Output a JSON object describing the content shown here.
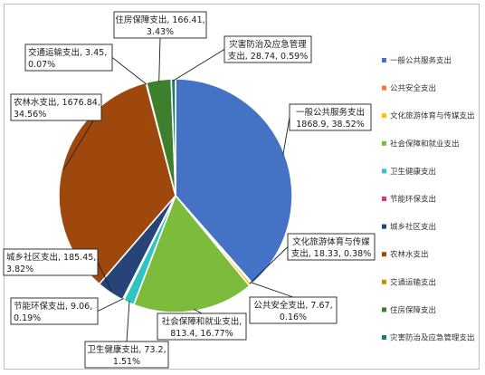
{
  "chart_data": {
    "type": "pie",
    "title": "",
    "legend_position": "right",
    "series": [
      {
        "name": "一般公共服务支出",
        "value": 1868.9,
        "percent": "38.52%",
        "label_line1": "一般公共服务支出",
        "label_line2": "1868.9, 38.52%",
        "color": "#4472c4"
      },
      {
        "name": "公共安全支出",
        "value": 7.67,
        "percent": "0.16%",
        "label_line1": "公共安全支出, 7.67,",
        "label_line2": "0.16%",
        "color": "#ed7d31"
      },
      {
        "name": "文化旅游体育与传媒支出",
        "value": 18.33,
        "percent": "0.38%",
        "label_line1": "文化旅游体育与传媒",
        "label_line2": "支出, 18.33, 0.38%",
        "color": "#ffc000"
      },
      {
        "name": "社会保障和就业支出",
        "value": 813.4,
        "percent": "16.77%",
        "label_line1": "社会保障和就业支出,",
        "label_line2": "813.4, 16.77%",
        "color": "#7cbb3c"
      },
      {
        "name": "卫生健康支出",
        "value": 73.2,
        "percent": "1.51%",
        "label_line1": "卫生健康支出, 73.2,",
        "label_line2": "1.51%",
        "color": "#2ec5c0"
      },
      {
        "name": "节能环保支出",
        "value": 9.06,
        "percent": "0.19%",
        "label_line1": "节能环保支出, 9.06,",
        "label_line2": "0.19%",
        "color": "#e0308a"
      },
      {
        "name": "城乡社区支出",
        "value": 185.45,
        "percent": "3.82%",
        "label_line1": "城乡社区支出, 185.45,",
        "label_line2": "3.82%",
        "color": "#264478"
      },
      {
        "name": "农林水支出",
        "value": 1676.84,
        "percent": "34.56%",
        "label_line1": "农林水支出, 1676.84,",
        "label_line2": "34.56%",
        "color": "#9e480e"
      },
      {
        "name": "交通运输支出",
        "value": 3.45,
        "percent": "0.07%",
        "label_line1": "交通运输支出, 3.45,",
        "label_line2": "0.07%",
        "color": "#c09000"
      },
      {
        "name": "住房保障支出",
        "value": 166.41,
        "percent": "3.43%",
        "label_line1": "住房保障支出, 166.41,",
        "label_line2": "3.43%",
        "color": "#3e7f2d"
      },
      {
        "name": "灾害防治及应急管理支出",
        "value": 28.74,
        "percent": "0.59%",
        "label_line1": "灾害防治及应急管理",
        "label_line2": "支出, 28.74, 0.59%",
        "color": "#1c7a78"
      }
    ]
  }
}
